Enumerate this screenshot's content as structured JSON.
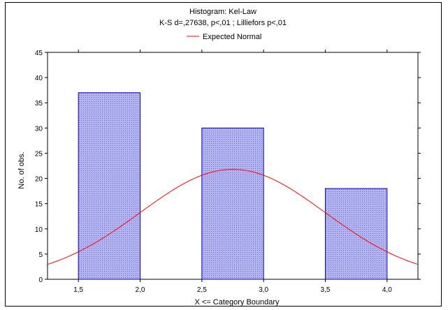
{
  "chart_data": {
    "type": "bar",
    "title": "Histogram: Kel-Law",
    "subtitle": "K-S d=,27638, p<,01 ; Lilliefors p<,01",
    "legend": [
      {
        "label": "Expected Normal",
        "color": "#ff0000"
      }
    ],
    "legend_placement": "top-center",
    "xlabel": "X <= Category Boundary",
    "ylabel": "No. of obs.",
    "xlim": [
      1.25,
      4.25
    ],
    "ylim": [
      0,
      45
    ],
    "x_ticks": [
      1.5,
      2.0,
      2.5,
      3.0,
      3.5,
      4.0
    ],
    "x_tick_labels": [
      "1,5",
      "2,0",
      "2,5",
      "3,0",
      "3,5",
      "4,0"
    ],
    "y_ticks": [
      0,
      5,
      10,
      15,
      20,
      25,
      30,
      35,
      40,
      45
    ],
    "y_tick_labels": [
      "0",
      "5",
      "10",
      "15",
      "20",
      "25",
      "30",
      "35",
      "40",
      "45"
    ],
    "bars": [
      {
        "x0": 1.5,
        "x1": 2.0,
        "value": 37
      },
      {
        "x0": 2.5,
        "x1": 3.0,
        "value": 30
      },
      {
        "x0": 3.5,
        "x1": 4.0,
        "value": 18
      }
    ],
    "bar_fill": "#aaaaee",
    "bar_stroke": "#0000cc",
    "normal_curve": {
      "amplitude": 21.8,
      "mean": 2.75,
      "sd": 0.75,
      "color": "#ff0000"
    },
    "grid": false
  }
}
